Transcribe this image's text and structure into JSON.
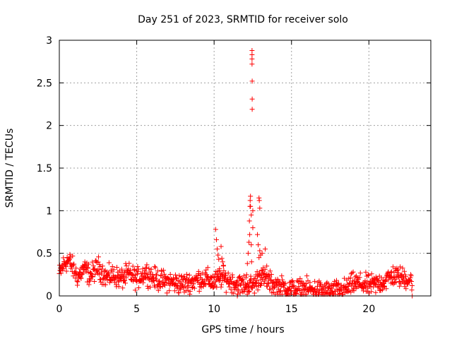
{
  "chart_data": {
    "type": "scatter",
    "title": "Day 251 of 2023, SRMTID for receiver solo",
    "xlabel": "GPS time / hours",
    "ylabel": "SRMTID / TECUs",
    "xlim": [
      0,
      24
    ],
    "ylim": [
      0,
      3
    ],
    "grid": true,
    "marker": "+",
    "x_ticks": [
      0,
      5,
      10,
      15,
      20
    ],
    "x_tick_labels": [
      "0",
      "5",
      "10",
      "15",
      "20"
    ],
    "y_ticks": [
      0,
      0.5,
      1,
      1.5,
      2,
      2.5,
      3
    ],
    "y_tick_labels": [
      "0",
      "0.5",
      "1",
      "1.5",
      "2",
      "2.5",
      "3"
    ],
    "series": [
      {
        "name": "SRMTID",
        "color": "#ff0000",
        "baseline_profile": [
          [
            0.0,
            0.25
          ],
          [
            0.3,
            0.38
          ],
          [
            0.6,
            0.42
          ],
          [
            0.9,
            0.32
          ],
          [
            1.2,
            0.22
          ],
          [
            1.6,
            0.32
          ],
          [
            2.0,
            0.24
          ],
          [
            2.5,
            0.34
          ],
          [
            3.0,
            0.22
          ],
          [
            3.5,
            0.24
          ],
          [
            4.0,
            0.2
          ],
          [
            4.5,
            0.26
          ],
          [
            5.0,
            0.2
          ],
          [
            5.6,
            0.28
          ],
          [
            6.0,
            0.22
          ],
          [
            6.5,
            0.18
          ],
          [
            7.0,
            0.17
          ],
          [
            7.5,
            0.15
          ],
          [
            8.0,
            0.14
          ],
          [
            8.5,
            0.16
          ],
          [
            9.0,
            0.2
          ],
          [
            9.5,
            0.2
          ],
          [
            10.0,
            0.16
          ],
          [
            10.5,
            0.22
          ],
          [
            11.0,
            0.18
          ],
          [
            11.5,
            0.13
          ],
          [
            12.0,
            0.13
          ],
          [
            12.5,
            0.12
          ],
          [
            13.0,
            0.24
          ],
          [
            13.5,
            0.17
          ],
          [
            14.0,
            0.12
          ],
          [
            14.5,
            0.1
          ],
          [
            15.0,
            0.08
          ],
          [
            16.0,
            0.08
          ],
          [
            17.0,
            0.06
          ],
          [
            17.5,
            0.05
          ],
          [
            18.0,
            0.06
          ],
          [
            18.5,
            0.08
          ],
          [
            19.0,
            0.15
          ],
          [
            19.5,
            0.14
          ],
          [
            20.0,
            0.12
          ],
          [
            20.5,
            0.14
          ],
          [
            21.0,
            0.17
          ],
          [
            21.5,
            0.24
          ],
          [
            22.0,
            0.22
          ],
          [
            22.5,
            0.2
          ],
          [
            22.8,
            0.18
          ]
        ],
        "scatter_spread": 0.06,
        "end_hour": 22.8,
        "spikes": [
          [
            10.1,
            0.78
          ],
          [
            10.15,
            0.66
          ],
          [
            10.2,
            0.55
          ],
          [
            10.25,
            0.48
          ],
          [
            10.3,
            0.43
          ],
          [
            10.35,
            0.32
          ],
          [
            10.45,
            0.58
          ],
          [
            10.5,
            0.44
          ],
          [
            10.55,
            0.4
          ],
          [
            10.6,
            0.35
          ],
          [
            12.1,
            0.25
          ],
          [
            12.15,
            0.38
          ],
          [
            12.2,
            0.5
          ],
          [
            12.25,
            0.63
          ],
          [
            12.28,
            0.88
          ],
          [
            12.3,
            0.72
          ],
          [
            12.32,
            1.05
          ],
          [
            12.33,
            1.12
          ],
          [
            12.35,
            1.17
          ],
          [
            12.35,
            1.05
          ],
          [
            12.4,
            0.95
          ],
          [
            12.4,
            0.6
          ],
          [
            12.42,
            0.4
          ],
          [
            12.45,
            2.88
          ],
          [
            12.45,
            2.83
          ],
          [
            12.45,
            2.78
          ],
          [
            12.45,
            2.72
          ],
          [
            12.46,
            2.52
          ],
          [
            12.46,
            2.31
          ],
          [
            12.46,
            2.19
          ],
          [
            12.5,
            1.0
          ],
          [
            12.5,
            0.8
          ],
          [
            12.8,
            0.72
          ],
          [
            12.85,
            0.6
          ],
          [
            12.9,
            0.45
          ],
          [
            12.9,
            1.15
          ],
          [
            12.92,
            1.12
          ],
          [
            12.95,
            1.03
          ],
          [
            12.95,
            0.53
          ],
          [
            13.0,
            0.48
          ],
          [
            13.1,
            0.5
          ],
          [
            13.05,
            0.3
          ],
          [
            13.3,
            0.55
          ],
          [
            13.4,
            0.35
          ]
        ],
        "outliers": [
          [
            11.5,
            0.0
          ],
          [
            22.8,
            0.0
          ]
        ]
      }
    ]
  }
}
